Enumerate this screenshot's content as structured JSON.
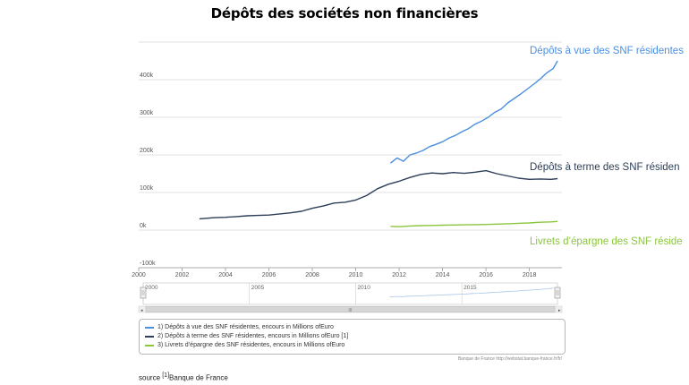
{
  "title": "Dépôts des sociétés non financières",
  "colors": {
    "blue": "#4a8fe0",
    "navy": "#2c3e58",
    "green": "#8cc63f"
  },
  "chart_data": {
    "type": "line",
    "title": "Dépôts des sociétés non financières",
    "x_range": [
      2000,
      2019.5
    ],
    "ylim": [
      -100000,
      500000
    ],
    "y_ticks": [
      "-100k",
      "0k",
      "100k",
      "200k",
      "300k",
      "400k"
    ],
    "x_ticks": [
      "2000",
      "2002",
      "2004",
      "2006",
      "2008",
      "2010",
      "2012",
      "2014",
      "2016",
      "2018"
    ],
    "navigator_ticks": [
      "2000",
      "2005",
      "2010",
      "2015"
    ],
    "navigator_scroll_label": "III",
    "series": [
      {
        "name": "Dépôts à vue des SNF résidentes",
        "color": "#4a8fe0",
        "x": [
          2011.6,
          2011.9,
          2012.2,
          2012.5,
          2012.8,
          2013.1,
          2013.4,
          2013.7,
          2014.0,
          2014.3,
          2014.6,
          2014.9,
          2015.2,
          2015.5,
          2015.8,
          2016.1,
          2016.4,
          2016.7,
          2017.0,
          2017.3,
          2017.6,
          2017.9,
          2018.2,
          2018.5,
          2018.8,
          2019.1,
          2019.3
        ],
        "y": [
          178000,
          192000,
          183000,
          200000,
          205000,
          212000,
          222000,
          228000,
          235000,
          245000,
          252000,
          262000,
          270000,
          282000,
          290000,
          300000,
          313000,
          322000,
          338000,
          350000,
          362000,
          375000,
          388000,
          402000,
          418000,
          430000,
          450000
        ]
      },
      {
        "name": "Dépôts à terme des SNF résidentes",
        "color": "#2c3e58",
        "x": [
          2002.8,
          2003.5,
          2004.0,
          2004.5,
          2005.0,
          2005.5,
          2006.0,
          2006.5,
          2007.0,
          2007.5,
          2008.0,
          2008.5,
          2009.0,
          2009.5,
          2010.0,
          2010.5,
          2011.0,
          2011.5,
          2012.0,
          2012.5,
          2013.0,
          2013.5,
          2014.0,
          2014.5,
          2015.0,
          2015.5,
          2016.0,
          2016.5,
          2017.0,
          2017.5,
          2018.0,
          2018.5,
          2019.0,
          2019.3
        ],
        "y": [
          30000,
          33000,
          34000,
          36000,
          38000,
          39000,
          40000,
          43000,
          46000,
          50000,
          58000,
          64000,
          72000,
          74000,
          80000,
          92000,
          110000,
          122000,
          130000,
          140000,
          148000,
          152000,
          150000,
          153000,
          151000,
          154000,
          158000,
          150000,
          144000,
          138000,
          135000,
          136000,
          135000,
          137000
        ]
      },
      {
        "name": "Livrets d’épargne des SNF résidentes",
        "color": "#8cc63f",
        "x": [
          2011.6,
          2012.0,
          2012.5,
          2013.0,
          2013.5,
          2014.0,
          2014.5,
          2015.0,
          2015.5,
          2016.0,
          2016.5,
          2017.0,
          2017.5,
          2018.0,
          2018.5,
          2019.0,
          2019.3
        ],
        "y": [
          10000,
          9000,
          11000,
          12000,
          12500,
          13000,
          13500,
          14000,
          14500,
          15000,
          16000,
          17000,
          18000,
          19000,
          21000,
          22000,
          23000
        ]
      }
    ],
    "series_end_labels": [
      "Dépôts à vue des SNF résidentes",
      "Dépôts à terme des SNF résiden",
      "Livrets d’épargne des SNF réside"
    ],
    "legend": {
      "placement": "bottom",
      "items": [
        "1) Dépôts à vue des SNF résidentes, encours in Millions ofEuro",
        "2) Dépôts à terme des SNF résidentes, encours in Millions ofEuro [1]",
        "3) Livrets d’épargne des SNF résidentes, encours in Millions ofEuro"
      ]
    }
  },
  "credits": "Banque de France http://webstat.banque-france.fr/fr/",
  "source": {
    "prefix": "source ",
    "ref": "[1]",
    "text": "Banque de France"
  }
}
